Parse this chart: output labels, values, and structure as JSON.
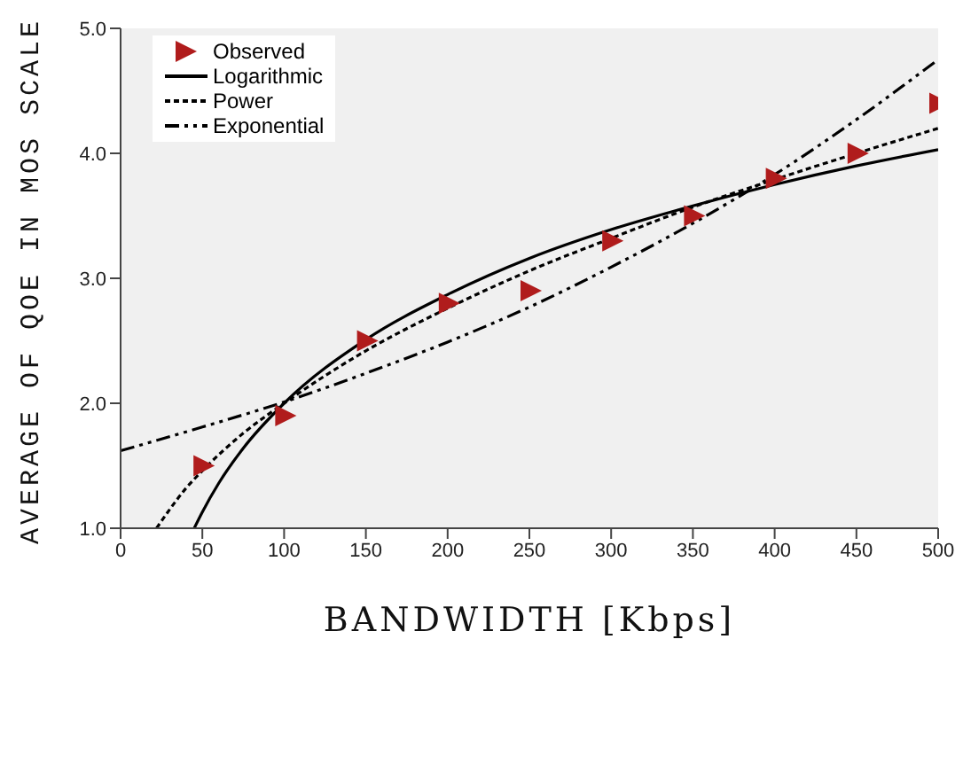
{
  "chart_data": {
    "type": "line",
    "xlabel": "BANDWIDTH [Kbps]",
    "ylabel": "AVERAGE OF QOE IN MOS SCALE",
    "xlim": [
      0,
      500
    ],
    "xticks": [
      0,
      50,
      100,
      150,
      200,
      250,
      300,
      350,
      400,
      450,
      500
    ],
    "ylim": [
      1,
      5
    ],
    "yticks": [
      {
        "value": 1,
        "label": "1.0"
      },
      {
        "value": 2,
        "label": "2.0"
      },
      {
        "value": 3,
        "label": "3.0"
      },
      {
        "value": 4,
        "label": "4.0"
      },
      {
        "value": 5,
        "label": "5.0"
      }
    ],
    "grid": false,
    "legend": "top left",
    "series": [
      {
        "name": "Observed",
        "type": "scatter",
        "marker": "triangle",
        "color": "#b01c1c",
        "x": [
          50,
          100,
          150,
          200,
          250,
          300,
          350,
          400,
          450,
          500
        ],
        "values": [
          1.5,
          1.9,
          2.5,
          2.8,
          2.9,
          3.3,
          3.5,
          3.8,
          4.0,
          4.4
        ]
      },
      {
        "name": "Logarithmic",
        "line_style": "solid",
        "color": "#000000",
        "x": [
          45,
          50,
          60,
          75,
          100,
          150,
          200,
          250,
          300,
          350,
          400,
          450,
          500
        ],
        "values": [
          1.0,
          1.13,
          1.36,
          1.64,
          2.0,
          2.51,
          2.87,
          3.16,
          3.39,
          3.58,
          3.75,
          3.9,
          4.03
        ]
      },
      {
        "name": "Power",
        "line_style": "dotted",
        "color": "#000000",
        "x": [
          22,
          30,
          40,
          50,
          75,
          100,
          150,
          200,
          250,
          300,
          350,
          400,
          450,
          500
        ],
        "values": [
          1.0,
          1.15,
          1.32,
          1.46,
          1.76,
          2.0,
          2.42,
          2.76,
          3.06,
          3.32,
          3.57,
          3.79,
          4.0,
          4.2
        ]
      },
      {
        "name": "Exponential",
        "line_style": "dashdot",
        "color": "#000000",
        "x": [
          0,
          50,
          100,
          150,
          200,
          250,
          300,
          350,
          400,
          450,
          500
        ],
        "values": [
          1.62,
          1.81,
          2.01,
          2.24,
          2.49,
          2.77,
          3.09,
          3.44,
          3.83,
          4.27,
          4.75
        ]
      }
    ]
  }
}
